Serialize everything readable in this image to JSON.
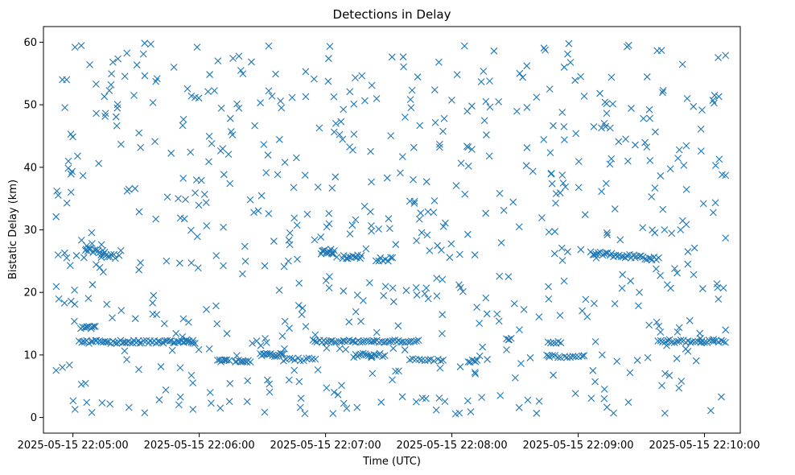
{
  "chart_data": {
    "type": "scatter",
    "title": "Detections in Delay",
    "xlabel": "Time (UTC)",
    "ylabel": "Bistatic Delay (km)",
    "marker": "x",
    "marker_color": "#1f77b4",
    "x_unit": "seconds after 2025-05-15 22:04:00",
    "xlim": [
      46,
      377
    ],
    "ylim": [
      -2.5,
      62.5
    ],
    "x_ticks": [
      {
        "value": 60,
        "label": "2025-05-15 22:05:00"
      },
      {
        "value": 120,
        "label": "2025-05-15 22:06:00"
      },
      {
        "value": 180,
        "label": "2025-05-15 22:07:00"
      },
      {
        "value": 240,
        "label": "2025-05-15 22:08:00"
      },
      {
        "value": 300,
        "label": "2025-05-15 22:09:00"
      },
      {
        "value": 360,
        "label": "2025-05-15 22:10:00"
      }
    ],
    "y_ticks": [
      {
        "value": 0,
        "label": "0"
      },
      {
        "value": 10,
        "label": "10"
      },
      {
        "value": 20,
        "label": "20"
      },
      {
        "value": 30,
        "label": "30"
      },
      {
        "value": 40,
        "label": "40"
      },
      {
        "value": 50,
        "label": "50"
      },
      {
        "value": 60,
        "label": "60"
      }
    ],
    "bands": [
      {
        "y": 26.9,
        "jitter": 0.35,
        "x_start": 66,
        "x_end": 80,
        "slope": -0.08,
        "count": 18
      },
      {
        "y": 14.4,
        "jitter": 0.2,
        "x_start": 64,
        "x_end": 70,
        "slope": 0,
        "count": 9
      },
      {
        "y": 12.1,
        "jitter": 0.25,
        "x_start": 63,
        "x_end": 118,
        "slope": 0,
        "count": 60
      },
      {
        "y": 9.1,
        "jitter": 0.2,
        "x_start": 129,
        "x_end": 134,
        "slope": 0,
        "count": 8
      },
      {
        "y": 9.0,
        "jitter": 0.2,
        "x_start": 137,
        "x_end": 144,
        "slope": 0,
        "count": 10
      },
      {
        "y": 10.0,
        "jitter": 0.25,
        "x_start": 149,
        "x_end": 160,
        "slope": 0,
        "count": 16
      },
      {
        "y": 9.3,
        "jitter": 0.25,
        "x_start": 160,
        "x_end": 175,
        "slope": 0,
        "count": 12
      },
      {
        "y": 12.2,
        "jitter": 0.2,
        "x_start": 174,
        "x_end": 224,
        "slope": 0,
        "count": 50
      },
      {
        "y": 26.5,
        "jitter": 0.4,
        "x_start": 178,
        "x_end": 184,
        "slope": 0,
        "count": 12
      },
      {
        "y": 25.7,
        "jitter": 0.3,
        "x_start": 188,
        "x_end": 197,
        "slope": 0,
        "count": 12
      },
      {
        "y": 10.0,
        "jitter": 0.25,
        "x_start": 194,
        "x_end": 208,
        "slope": 0,
        "count": 16
      },
      {
        "y": 25.3,
        "jitter": 0.3,
        "x_start": 204,
        "x_end": 212,
        "slope": 0,
        "count": 8
      },
      {
        "y": 9.2,
        "jitter": 0.2,
        "x_start": 220,
        "x_end": 236,
        "slope": 0,
        "count": 12
      },
      {
        "y": 9.0,
        "jitter": 0.2,
        "x_start": 248,
        "x_end": 252,
        "slope": 0,
        "count": 6
      },
      {
        "y": 12.5,
        "jitter": 0.2,
        "x_start": 266,
        "x_end": 268,
        "slope": 0,
        "count": 4
      },
      {
        "y": 9.8,
        "jitter": 0.25,
        "x_start": 285,
        "x_end": 303,
        "slope": 0,
        "count": 14
      },
      {
        "y": 26.3,
        "jitter": 0.3,
        "x_start": 306,
        "x_end": 338,
        "slope": -0.03,
        "count": 36
      },
      {
        "y": 12.2,
        "jitter": 0.25,
        "x_start": 338,
        "x_end": 370,
        "slope": 0,
        "count": 30
      },
      {
        "y": 12.0,
        "jitter": 0.2,
        "x_start": 286,
        "x_end": 292,
        "slope": 0,
        "count": 6
      }
    ],
    "scatter": {
      "count": 620,
      "x_range": [
        52,
        370
      ],
      "y_range": [
        0.5,
        60
      ],
      "seed": 20250515
    },
    "anchor_points": [
      {
        "x": 52,
        "y": 32.1
      },
      {
        "x": 53,
        "y": 26.0
      },
      {
        "x": 55,
        "y": 54.0
      },
      {
        "x": 57,
        "y": 54.0
      },
      {
        "x": 55,
        "y": 8.0
      },
      {
        "x": 56,
        "y": 18.3
      },
      {
        "x": 59,
        "y": 45.3
      },
      {
        "x": 61,
        "y": 59.2
      },
      {
        "x": 61,
        "y": 1.3
      },
      {
        "x": 64,
        "y": 5.3
      },
      {
        "x": 68,
        "y": 56.4
      },
      {
        "x": 71,
        "y": 53.3
      },
      {
        "x": 69,
        "y": 0.8
      },
      {
        "x": 79,
        "y": 56.8
      },
      {
        "x": 89,
        "y": 51.5
      },
      {
        "x": 97,
        "y": 59.7
      },
      {
        "x": 108,
        "y": 56.0
      },
      {
        "x": 119,
        "y": 59.2
      },
      {
        "x": 117,
        "y": 1.3
      },
      {
        "x": 130,
        "y": 1.5
      },
      {
        "x": 153,
        "y": 59.4
      },
      {
        "x": 168,
        "y": 1.6
      },
      {
        "x": 195,
        "y": 1.6
      },
      {
        "x": 246,
        "y": 59.4
      },
      {
        "x": 260,
        "y": 58.6
      },
      {
        "x": 295,
        "y": 58.1
      },
      {
        "x": 324,
        "y": 59.5
      },
      {
        "x": 363,
        "y": 1.1
      },
      {
        "x": 368,
        "y": 3.3
      },
      {
        "x": 370,
        "y": 57.9
      },
      {
        "x": 370,
        "y": 38.7
      },
      {
        "x": 370,
        "y": 28.7
      },
      {
        "x": 370,
        "y": 14.0
      },
      {
        "x": 369,
        "y": 20.7
      },
      {
        "x": 367,
        "y": 41.3
      },
      {
        "x": 364,
        "y": 50.7
      },
      {
        "x": 313,
        "y": 46.5
      },
      {
        "x": 331,
        "y": 47.8
      },
      {
        "x": 341,
        "y": 30.0
      },
      {
        "x": 295,
        "y": 26.5
      },
      {
        "x": 202,
        "y": 53.1
      },
      {
        "x": 228,
        "y": 37.7
      },
      {
        "x": 234,
        "y": 3.1
      },
      {
        "x": 263,
        "y": 3.5
      }
    ]
  }
}
